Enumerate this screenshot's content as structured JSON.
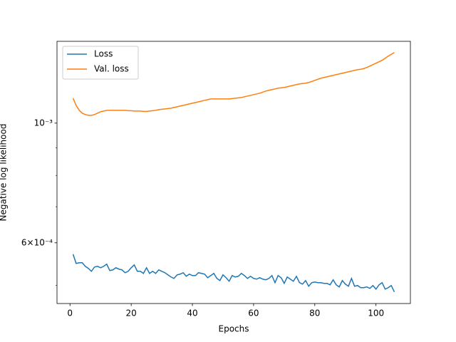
{
  "chart_data": {
    "type": "line",
    "xlabel": "Epochs",
    "ylabel": "Negative log likelihood",
    "x": [
      1,
      2,
      3,
      4,
      5,
      6,
      7,
      8,
      9,
      10,
      11,
      12,
      13,
      14,
      15,
      16,
      17,
      18,
      19,
      20,
      21,
      22,
      23,
      24,
      25,
      26,
      27,
      28,
      29,
      30,
      31,
      32,
      33,
      34,
      35,
      36,
      37,
      38,
      39,
      40,
      41,
      42,
      43,
      44,
      45,
      46,
      47,
      48,
      49,
      50,
      51,
      52,
      53,
      54,
      55,
      56,
      57,
      58,
      59,
      60,
      61,
      62,
      63,
      64,
      65,
      66,
      67,
      68,
      69,
      70,
      71,
      72,
      73,
      74,
      75,
      76,
      77,
      78,
      79,
      80,
      81,
      82,
      83,
      84,
      85,
      86,
      87,
      88,
      89,
      90,
      91,
      92,
      93,
      94,
      95,
      96,
      97,
      98,
      99,
      100,
      101,
      102,
      103,
      104,
      105,
      106
    ],
    "series": [
      {
        "name": "Loss",
        "color": "#1f77b4",
        "values": [
          0.0005716,
          0.0005494,
          0.0005511,
          0.0005511,
          0.0005427,
          0.0005378,
          0.0005313,
          0.0005411,
          0.0005427,
          0.0005394,
          0.0005427,
          0.0005477,
          0.0005329,
          0.0005345,
          0.0005394,
          0.0005362,
          0.0005345,
          0.0005281,
          0.0005313,
          0.0005394,
          0.000546,
          0.0005313,
          0.0005313,
          0.0005265,
          0.0005394,
          0.0005265,
          0.0005313,
          0.0005265,
          0.0005345,
          0.0005313,
          0.0005281,
          0.0005233,
          0.0005185,
          0.0005154,
          0.0005233,
          0.0005249,
          0.0005281,
          0.0005201,
          0.0005249,
          0.0005217,
          0.0005217,
          0.0005281,
          0.0005265,
          0.0005249,
          0.000517,
          0.0005217,
          0.0005265,
          0.0005154,
          0.0005107,
          0.0005233,
          0.000517,
          0.0005092,
          0.0005217,
          0.0005185,
          0.0005201,
          0.0005265,
          0.0005217,
          0.0005154,
          0.0005201,
          0.0005154,
          0.0005138,
          0.000517,
          0.0005138,
          0.0005123,
          0.0005154,
          0.0005217,
          0.0005061,
          0.0005217,
          0.000517,
          0.0005046,
          0.0005185,
          0.0005138,
          0.0005092,
          0.0005201,
          0.0005061,
          0.000503,
          0.0005107,
          0.0004985,
          0.0005061,
          0.0005076,
          0.0005061,
          0.0005061,
          0.0005046,
          0.0005046,
          0.0005015,
          0.0005123,
          0.0005015,
          0.000497,
          0.0005107,
          0.000503,
          0.0004985,
          0.0005154,
          0.0004985,
          0.0005,
          0.0004954,
          0.0004954,
          0.000497,
          0.0004939,
          0.0005,
          0.0004924,
          0.0005015,
          0.0005061,
          0.0004924,
          0.0004954,
          0.0005,
          0.0004865
        ]
      },
      {
        "name": "Val. loss",
        "color": "#ff7f0e",
        "values": [
          0.0011123,
          0.0010789,
          0.0010563,
          0.0010435,
          0.0010372,
          0.001034,
          0.001034,
          0.0010372,
          0.0010435,
          0.0010499,
          0.001053,
          0.0010563,
          0.0010563,
          0.0010563,
          0.0010563,
          0.0010563,
          0.0010563,
          0.0010563,
          0.0010547,
          0.0010547,
          0.001053,
          0.001053,
          0.001053,
          0.0010514,
          0.0010514,
          0.001053,
          0.0010547,
          0.0010563,
          0.0010594,
          0.001061,
          0.0010627,
          0.0010643,
          0.0010659,
          0.0010691,
          0.0010724,
          0.0010757,
          0.0010789,
          0.0010822,
          0.0010855,
          0.0010888,
          0.0010921,
          0.0010955,
          0.0010988,
          0.0011022,
          0.0011055,
          0.0011089,
          0.0011089,
          0.0011089,
          0.0011089,
          0.0011089,
          0.0011089,
          0.0011089,
          0.0011106,
          0.0011123,
          0.001114,
          0.0011157,
          0.0011191,
          0.0011225,
          0.001126,
          0.0011294,
          0.0011328,
          0.0011363,
          0.0011415,
          0.0011468,
          0.0011503,
          0.0011538,
          0.0011573,
          0.0011609,
          0.0011626,
          0.0011644,
          0.001168,
          0.0011715,
          0.0011751,
          0.0011787,
          0.0011823,
          0.0011841,
          0.0011859,
          0.0011895,
          0.0011949,
          0.0012004,
          0.0012059,
          0.0012114,
          0.0012151,
          0.0012188,
          0.0012225,
          0.0012263,
          0.00123,
          0.0012338,
          0.0012375,
          0.0012413,
          0.0012451,
          0.0012489,
          0.0012527,
          0.0012566,
          0.0012585,
          0.0012623,
          0.0012681,
          0.0012759,
          0.0012836,
          0.0012915,
          0.0012994,
          0.0013073,
          0.0013193,
          0.0013314,
          0.0013416,
          0.0013518
        ]
      }
    ],
    "xlim": [
      -4.25,
      111.25
    ],
    "xticks": [
      0,
      20,
      40,
      60,
      80,
      100
    ],
    "ylim": [
      0.000463,
      0.001418
    ],
    "ylog": true,
    "yticks": [
      {
        "value": 0.001,
        "label": "10⁻³"
      },
      {
        "value": 0.0006,
        "label": "6×10⁻⁴"
      }
    ],
    "yminorticks": [
      0.0005,
      0.0007,
      0.0008,
      0.0009
    ],
    "legend": "upper-left",
    "grid": false
  }
}
